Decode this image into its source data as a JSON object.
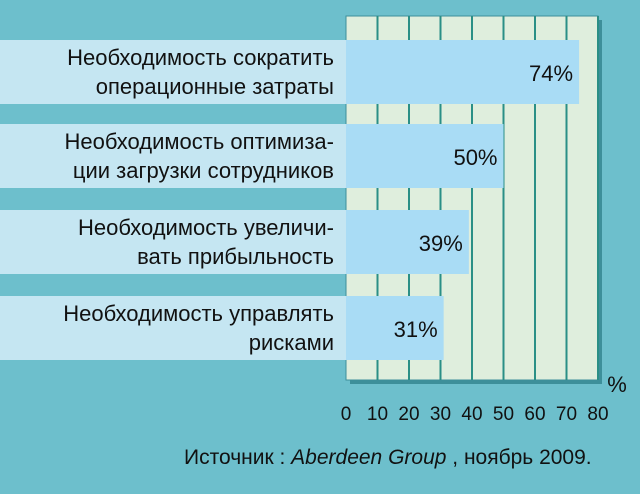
{
  "chart_data": {
    "type": "bar",
    "orientation": "horizontal",
    "categories": [
      [
        "Необходимость сократить",
        "операционные затраты"
      ],
      [
        "Необходимость оптимиза-",
        "ции загрузки сотрудников"
      ],
      [
        "Необходимость увеличи-",
        "вать прибыльность"
      ],
      [
        "Необходимость управлять",
        "рисками"
      ]
    ],
    "values": [
      74,
      50,
      39,
      31
    ],
    "value_labels": [
      "74%",
      "50%",
      "39%",
      "31%"
    ],
    "xlim": [
      0,
      80
    ],
    "xticks": [
      0,
      10,
      20,
      30,
      40,
      50,
      60,
      70,
      80
    ],
    "xticks_labels": [
      "0",
      "10",
      "20",
      "30",
      "40",
      "50",
      "60",
      "70",
      "80"
    ],
    "unit": "%",
    "grid": true,
    "colors": {
      "background": "#6dbfcc",
      "plot_background": "#dfeedd",
      "grid": "#2a8f86",
      "bar": "#a9dcf5",
      "label_band": "#c5e6f2"
    }
  },
  "source": {
    "prefix": "Источник : ",
    "name": "Aberdeen Group",
    "suffix": " , ноябрь 2009."
  }
}
